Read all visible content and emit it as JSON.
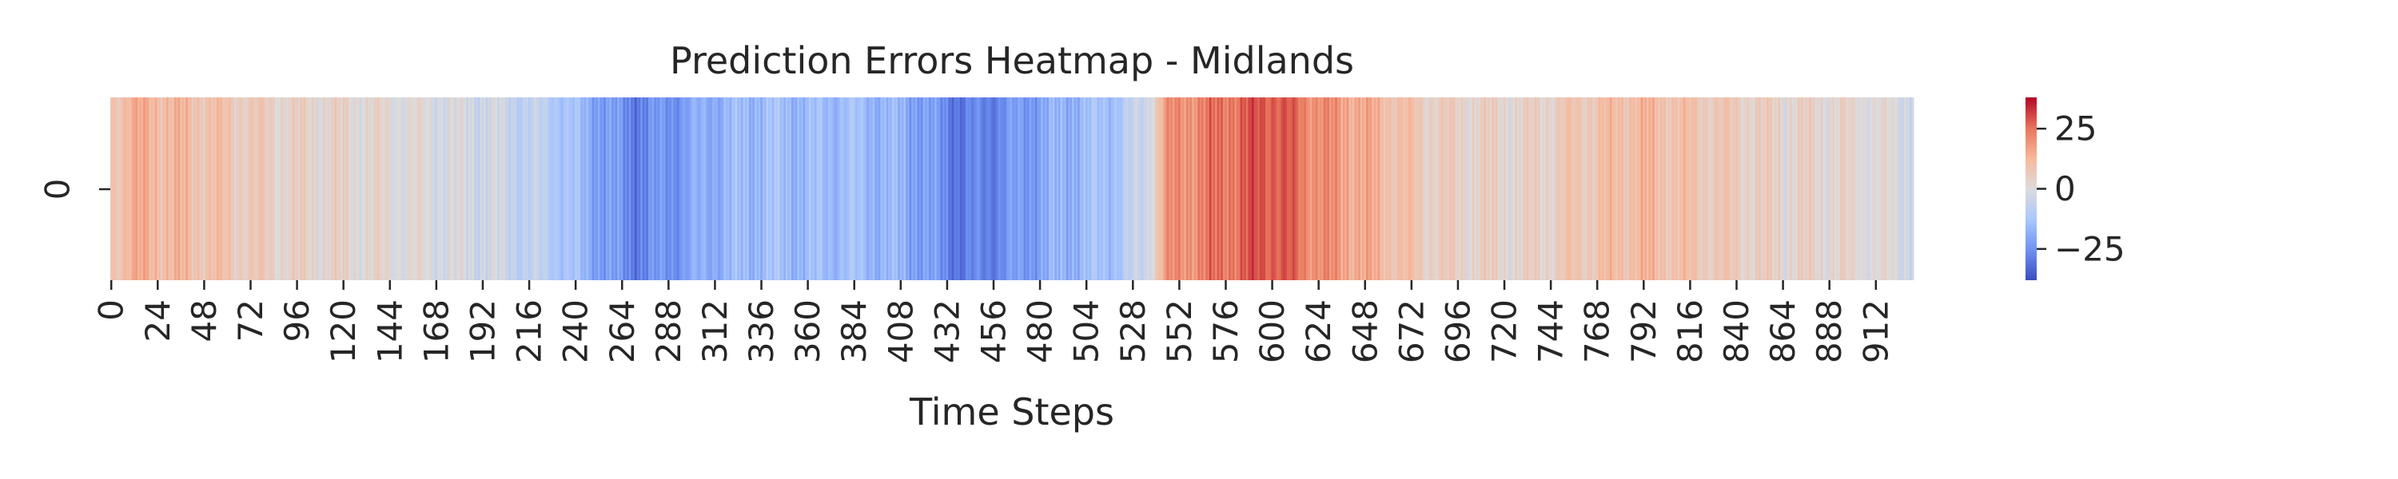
{
  "chart_data": {
    "type": "heatmap",
    "title": "Prediction Errors Heatmap - Midlands",
    "xlabel": "Time Steps",
    "ylabel": "",
    "row_labels": [
      "0"
    ],
    "x_range": [
      0,
      931
    ],
    "x_tick_step": 24,
    "x_tick_labels": [
      "0",
      "24",
      "48",
      "72",
      "96",
      "120",
      "144",
      "168",
      "192",
      "216",
      "240",
      "264",
      "288",
      "312",
      "336",
      "360",
      "384",
      "408",
      "432",
      "456",
      "480",
      "504",
      "528",
      "552",
      "576",
      "600",
      "624",
      "648",
      "672",
      "696",
      "720",
      "744",
      "768",
      "792",
      "816",
      "840",
      "864",
      "888",
      "912"
    ],
    "colorbar": {
      "range": [
        -38,
        38
      ],
      "tick_values": [
        25,
        0,
        -25
      ],
      "tick_labels": [
        "25",
        "0",
        "−25"
      ]
    },
    "colormap": "coolwarm",
    "colormap_stops": [
      "#3b4cc0",
      "#6f92f3",
      "#aac7fd",
      "#dddcdc",
      "#f7b89c",
      "#e7745b",
      "#b40426"
    ],
    "error_profile": [
      {
        "step": 0,
        "value": 8
      },
      {
        "step": 10,
        "value": 14
      },
      {
        "step": 30,
        "value": 12
      },
      {
        "step": 60,
        "value": 8
      },
      {
        "step": 90,
        "value": 4
      },
      {
        "step": 120,
        "value": 3
      },
      {
        "step": 150,
        "value": 1
      },
      {
        "step": 180,
        "value": -2
      },
      {
        "step": 200,
        "value": -4
      },
      {
        "step": 230,
        "value": -10
      },
      {
        "step": 250,
        "value": -20
      },
      {
        "step": 270,
        "value": -28
      },
      {
        "step": 290,
        "value": -24
      },
      {
        "step": 310,
        "value": -18
      },
      {
        "step": 340,
        "value": -14
      },
      {
        "step": 360,
        "value": -16
      },
      {
        "step": 380,
        "value": -14
      },
      {
        "step": 410,
        "value": -18
      },
      {
        "step": 440,
        "value": -30
      },
      {
        "step": 460,
        "value": -26
      },
      {
        "step": 490,
        "value": -18
      },
      {
        "step": 520,
        "value": -12
      },
      {
        "step": 535,
        "value": -4
      },
      {
        "step": 545,
        "value": 18
      },
      {
        "step": 570,
        "value": 24
      },
      {
        "step": 600,
        "value": 30
      },
      {
        "step": 620,
        "value": 22
      },
      {
        "step": 650,
        "value": 14
      },
      {
        "step": 680,
        "value": 6
      },
      {
        "step": 700,
        "value": 4
      },
      {
        "step": 730,
        "value": 3
      },
      {
        "step": 760,
        "value": 8
      },
      {
        "step": 790,
        "value": 12
      },
      {
        "step": 820,
        "value": 8
      },
      {
        "step": 860,
        "value": 4
      },
      {
        "step": 890,
        "value": 3
      },
      {
        "step": 910,
        "value": 1
      },
      {
        "step": 931,
        "value": -2
      }
    ]
  }
}
